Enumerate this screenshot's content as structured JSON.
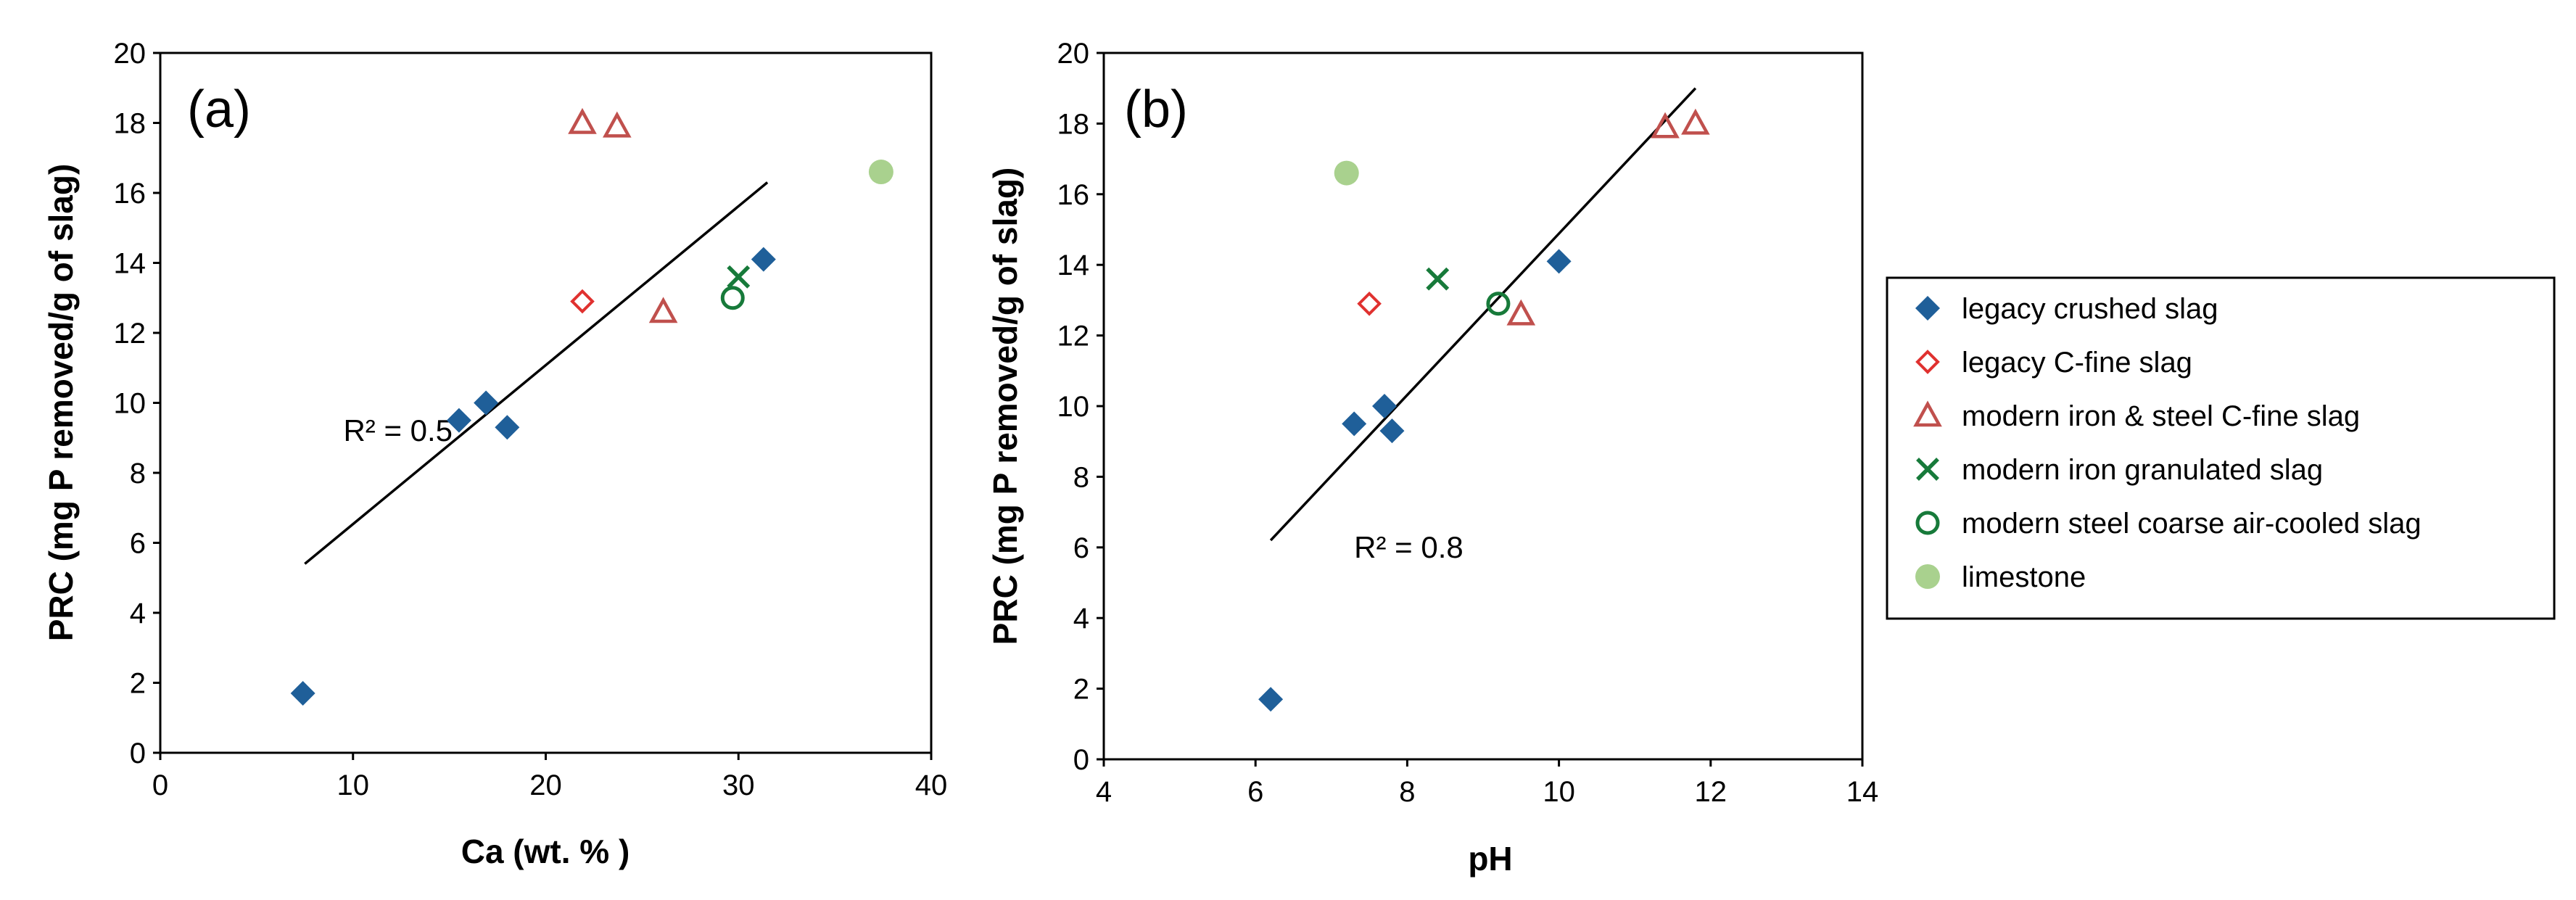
{
  "series_styles": {
    "legacy_crushed": {
      "marker": "diamond-filled",
      "color": "#1f5f99"
    },
    "legacy_cfine": {
      "marker": "diamond-open",
      "color": "#e0312f"
    },
    "modern_cfine": {
      "marker": "triangle-open",
      "color": "#c0504d"
    },
    "modern_granulated": {
      "marker": "x",
      "color": "#177a3a"
    },
    "modern_coarse": {
      "marker": "circle-open",
      "color": "#177a3a"
    },
    "limestone": {
      "marker": "circle-filled",
      "color": "#a9d18e"
    }
  },
  "legend": {
    "items": [
      {
        "key": "legacy_crushed",
        "label": "legacy crushed slag"
      },
      {
        "key": "legacy_cfine",
        "label": "legacy C-fine slag"
      },
      {
        "key": "modern_cfine",
        "label": "modern iron & steel C-fine slag"
      },
      {
        "key": "modern_granulated",
        "label": "modern iron granulated slag"
      },
      {
        "key": "modern_coarse",
        "label": "modern steel coarse air-cooled slag"
      },
      {
        "key": "limestone",
        "label": "limestone"
      }
    ]
  },
  "chart_data": [
    {
      "type": "scatter",
      "panel_label": "(a)",
      "xlabel": "Ca (wt. % )",
      "ylabel": "PRC (mg P removed/g of slag)",
      "xlim": [
        0,
        40
      ],
      "ylim": [
        0,
        20
      ],
      "xticks": [
        0,
        10,
        20,
        30,
        40
      ],
      "yticks": [
        0,
        2,
        4,
        6,
        8,
        10,
        12,
        14,
        16,
        18,
        20
      ],
      "grid": false,
      "series": [
        {
          "key": "legacy_crushed",
          "name": "legacy crushed slag",
          "points": [
            [
              7.4,
              1.7
            ],
            [
              15.5,
              9.5
            ],
            [
              16.9,
              10.0
            ],
            [
              18.0,
              9.3
            ],
            [
              31.3,
              14.1
            ]
          ]
        },
        {
          "key": "legacy_cfine",
          "name": "legacy C-fine slag",
          "points": [
            [
              21.9,
              12.9
            ]
          ]
        },
        {
          "key": "modern_cfine",
          "name": "modern iron & steel C-fine slag",
          "points": [
            [
              21.9,
              18.0
            ],
            [
              23.7,
              17.9
            ],
            [
              26.1,
              12.6
            ]
          ]
        },
        {
          "key": "modern_granulated",
          "name": "modern iron granulated slag",
          "points": [
            [
              30.0,
              13.6
            ]
          ]
        },
        {
          "key": "modern_coarse",
          "name": "modern steel coarse air-cooled slag",
          "points": [
            [
              29.7,
              13.0
            ]
          ]
        },
        {
          "key": "limestone",
          "name": "limestone",
          "points": [
            [
              37.4,
              16.6
            ]
          ]
        }
      ],
      "trendline": {
        "x": [
          7.5,
          31.5
        ],
        "y": [
          5.4,
          16.3
        ]
      },
      "annotation": {
        "text": "R² = 0.5",
        "x": 9.5,
        "y": 9.2
      }
    },
    {
      "type": "scatter",
      "panel_label": "(b)",
      "xlabel": "pH",
      "ylabel": "PRC (mg P removed/g of slag)",
      "xlim": [
        4,
        14
      ],
      "ylim": [
        0,
        20
      ],
      "xticks": [
        4,
        6,
        8,
        10,
        12,
        14
      ],
      "yticks": [
        0,
        2,
        4,
        6,
        8,
        10,
        12,
        14,
        16,
        18,
        20
      ],
      "grid": false,
      "series": [
        {
          "key": "legacy_crushed",
          "name": "legacy crushed slag",
          "points": [
            [
              6.2,
              1.7
            ],
            [
              7.3,
              9.5
            ],
            [
              7.7,
              10.0
            ],
            [
              7.8,
              9.3
            ],
            [
              10.0,
              14.1
            ]
          ]
        },
        {
          "key": "legacy_cfine",
          "name": "legacy C-fine slag",
          "points": [
            [
              7.5,
              12.9
            ]
          ]
        },
        {
          "key": "modern_cfine",
          "name": "modern iron & steel C-fine slag",
          "points": [
            [
              9.5,
              12.6
            ],
            [
              11.4,
              17.9
            ],
            [
              11.8,
              18.0
            ]
          ]
        },
        {
          "key": "modern_granulated",
          "name": "modern iron granulated slag",
          "points": [
            [
              8.4,
              13.6
            ]
          ]
        },
        {
          "key": "modern_coarse",
          "name": "modern steel coarse air-cooled slag",
          "points": [
            [
              9.2,
              12.9
            ]
          ]
        },
        {
          "key": "limestone",
          "name": "limestone",
          "points": [
            [
              7.2,
              16.6
            ]
          ]
        }
      ],
      "trendline": {
        "x": [
          6.2,
          11.8
        ],
        "y": [
          6.2,
          19.0
        ]
      },
      "annotation": {
        "text": "R² = 0.8",
        "x": 7.3,
        "y": 6.0
      }
    }
  ]
}
